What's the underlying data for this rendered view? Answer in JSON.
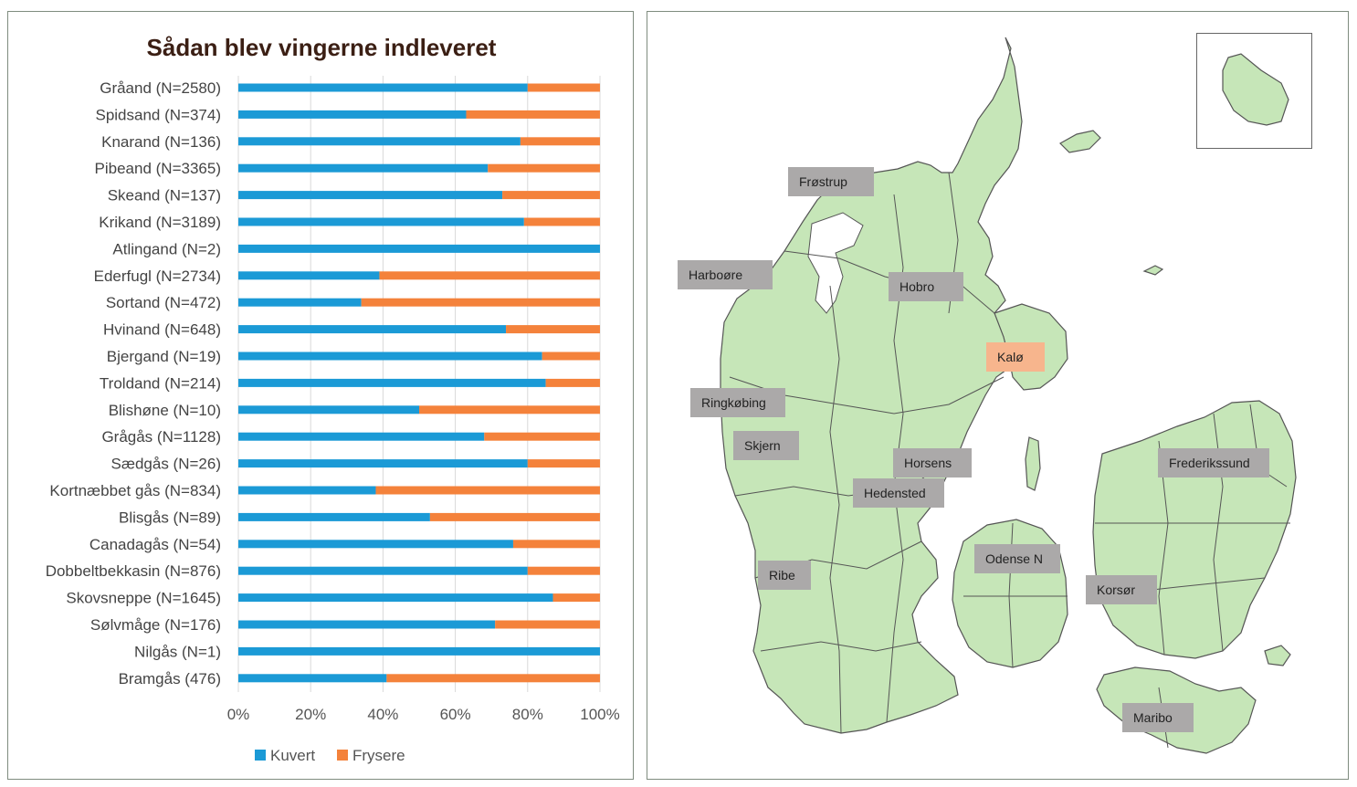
{
  "chart_data": {
    "type": "bar",
    "stacked": true,
    "orientation": "horizontal",
    "title": "Sådan blev vingerne indleveret",
    "categories": [
      "Gråand (N=2580)",
      "Spidsand (N=374)",
      "Knarand (N=136)",
      "Pibeand (N=3365)",
      "Skeand (N=137)",
      "Krikand (N=3189)",
      "Atlingand (N=2)",
      "Ederfugl (N=2734)",
      "Sortand (N=472)",
      "Hvinand (N=648)",
      "Bjergand (N=19)",
      "Troldand (N=214)",
      "Blishøne (N=10)",
      "Grågås (N=1128)",
      "Sædgås (N=26)",
      "Kortnæbbet gås (N=834)",
      "Blisgås (N=89)",
      "Canadagås (N=54)",
      "Dobbeltbekkasin (N=876)",
      "Skovsneppe (N=1645)",
      "Sølvmåge (N=176)",
      "Nilgås (N=1)",
      "Bramgås (476)"
    ],
    "series": [
      {
        "name": "Kuvert",
        "color": "#1b9ad6",
        "values": [
          80,
          63,
          78,
          69,
          73,
          79,
          100,
          39,
          34,
          74,
          84,
          85,
          50,
          68,
          80,
          38,
          53,
          76,
          80,
          87,
          71,
          100,
          41
        ]
      },
      {
        "name": "Frysere",
        "color": "#f4823b",
        "values": [
          20,
          37,
          22,
          31,
          27,
          21,
          0,
          61,
          66,
          26,
          16,
          15,
          50,
          32,
          20,
          62,
          47,
          24,
          20,
          13,
          29,
          0,
          59
        ]
      }
    ],
    "xlim": [
      0,
      100
    ],
    "xticks": [
      "0%",
      "20%",
      "40%",
      "60%",
      "80%",
      "100%"
    ],
    "grid": true,
    "legend": "bottom"
  },
  "map": {
    "labels": [
      "Frøstrup",
      "Harboøre",
      "Hobro",
      "Kalø",
      "Ringkøbing",
      "Skjern",
      "Horsens",
      "Hedensted",
      "Frederikssund",
      "Odense N",
      "Ribe",
      "Korsør",
      "Maribo"
    ],
    "land_color": "#c6e6b8",
    "border_color": "#555555",
    "label_color": "#aba9a9",
    "highlight_color": "#f7b58d"
  }
}
